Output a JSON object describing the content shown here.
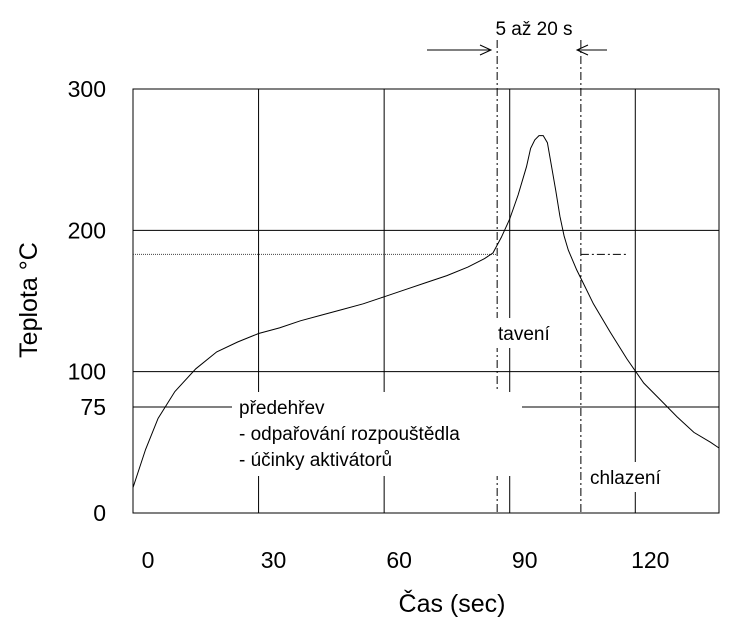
{
  "chart_data": {
    "type": "line",
    "title": "",
    "xlabel": "Čas (sec)",
    "ylabel": "Teplota °C",
    "xlim": [
      0,
      140
    ],
    "ylim": [
      0,
      300
    ],
    "x_ticks": [
      0,
      30,
      60,
      90,
      120
    ],
    "x_tick_labels": [
      "0",
      "30",
      "60",
      "90",
      "120"
    ],
    "y_ticks": [
      0,
      75,
      100,
      200,
      300
    ],
    "y_tick_labels": [
      "0",
      "75",
      "100",
      "200",
      "300"
    ],
    "grid": true,
    "series": [
      {
        "x": [
          0,
          3,
          6,
          10,
          15,
          20,
          25,
          30,
          35,
          40,
          45,
          50,
          55,
          60,
          65,
          70,
          75,
          80,
          84,
          86,
          88,
          90,
          92,
          94,
          95,
          96,
          97,
          98,
          99,
          100,
          101,
          102,
          103,
          104,
          106,
          108,
          110,
          114,
          118,
          122,
          126,
          130,
          134,
          138,
          140
        ],
        "y": [
          18,
          45,
          67,
          86,
          102,
          114,
          121,
          127,
          131,
          136,
          140,
          144,
          148,
          153,
          158,
          163,
          168,
          174,
          180,
          184,
          195,
          208,
          225,
          245,
          258,
          264,
          267,
          267,
          262,
          245,
          228,
          210,
          196,
          186,
          172,
          160,
          148,
          128,
          109,
          92,
          80,
          68,
          57,
          50,
          46
        ]
      }
    ],
    "reference_lines": {
      "vertical": [
        87,
        107
      ],
      "horizontal": [
        183
      ]
    },
    "annotations": {
      "interval": "5 až 20 s",
      "melting": "tavení",
      "preheat_title": "předehřev",
      "preheat_line1": "- odpařování rozpouštědla",
      "preheat_line2": "- účinky aktivátorů",
      "cooling": "chlazení"
    }
  }
}
